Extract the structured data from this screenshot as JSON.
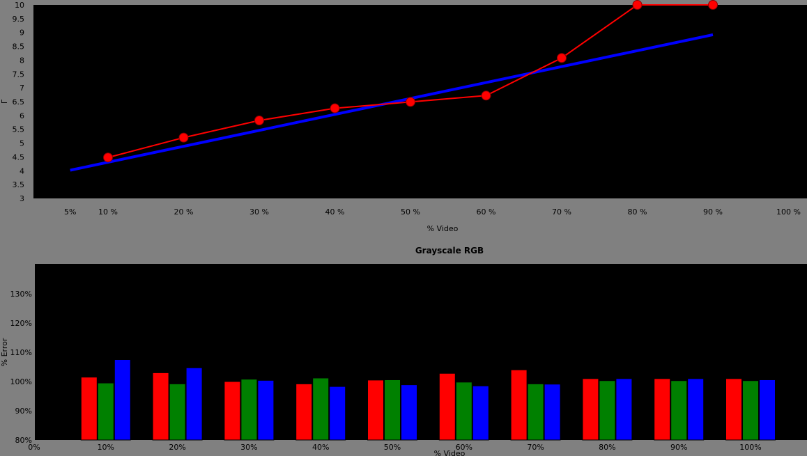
{
  "chart_data": [
    {
      "type": "line",
      "title": "",
      "xlabel": "% Video",
      "ylabel": "Γ",
      "x_ticks": [
        "5%",
        "10 %",
        "20 %",
        "30 %",
        "40 %",
        "50 %",
        "60 %",
        "70 %",
        "80 %",
        "90 %",
        "100 %"
      ],
      "y_ticks": [
        "3",
        "3.5",
        "4",
        "4.5",
        "5",
        "5.5",
        "6",
        "6.5",
        "7",
        "7.5",
        "8",
        "8.5",
        "9",
        "9.5",
        "10"
      ],
      "ylim": [
        3,
        10
      ],
      "grid": false,
      "series": [
        {
          "color": "#0000ff",
          "x": [
            5,
            90
          ],
          "y": [
            4.02,
            8.92
          ]
        },
        {
          "color": "#ff0000",
          "marker": "circle",
          "x": [
            10,
            20,
            30,
            40,
            50,
            60,
            70,
            80,
            90
          ],
          "y": [
            4.48,
            5.2,
            5.82,
            6.26,
            6.49,
            6.72,
            8.08,
            10.0,
            10.0
          ]
        }
      ]
    },
    {
      "type": "bar",
      "title": "Grayscale RGB",
      "xlabel": "% Video",
      "ylabel": "% Error",
      "x_ticks": [
        "0%",
        "10%",
        "20%",
        "30%",
        "40%",
        "50%",
        "60%",
        "70%",
        "80%",
        "90%",
        "100%"
      ],
      "y_ticks": [
        "80%",
        "90%",
        "100%",
        "110%",
        "120%",
        "130%"
      ],
      "ylim": [
        80,
        140
      ],
      "grid": false,
      "categories": [
        "10%",
        "20%",
        "30%",
        "40%",
        "50%",
        "60%",
        "70%",
        "80%",
        "90%",
        "100%"
      ],
      "series": [
        {
          "color": "#ff0000",
          "values": [
            101.5,
            103.0,
            100.0,
            99.2,
            100.5,
            102.8,
            104.0,
            101.0,
            101.0,
            101.0
          ]
        },
        {
          "color": "#008000",
          "values": [
            99.5,
            99.2,
            100.8,
            101.2,
            100.6,
            99.8,
            99.2,
            100.3,
            100.3,
            100.3
          ]
        },
        {
          "color": "#0000ff",
          "values": [
            107.5,
            104.7,
            100.4,
            98.3,
            98.9,
            98.5,
            99.1,
            101.0,
            101.0,
            100.6
          ]
        }
      ]
    }
  ]
}
